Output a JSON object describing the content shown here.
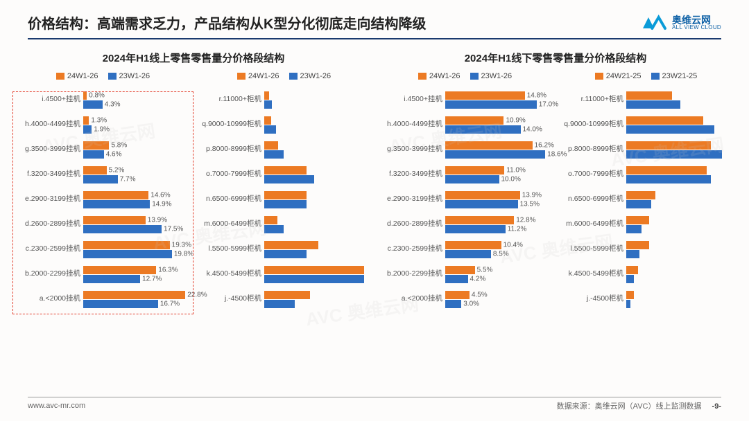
{
  "title": "价格结构：高端需求乏力，产品结构从K型分化彻底走向结构降级",
  "logo": {
    "cn": "奥维云网",
    "en": "ALL VIEW CLOUD"
  },
  "footer": {
    "url": "www.avc-mr.com",
    "source": "数据来源：奥维云网（AVC）线上监测数据",
    "page": "-9-"
  },
  "colors": {
    "series_a": "#ec7a23",
    "series_b": "#2f6fc1",
    "rule": "#1a3a6e",
    "highlight": "#e23c2a"
  },
  "panels": [
    {
      "title": "2024年H1线上零售零售量分价格段结构",
      "subcharts": [
        {
          "legend_a": "24W1-26",
          "legend_b": "23W1-26",
          "xmax": 24,
          "show_labels": true,
          "highlight": true,
          "rows": [
            {
              "cat": "i.4500+挂机",
              "a": 0.8,
              "b": 4.3
            },
            {
              "cat": "h.4000-4499挂机",
              "a": 1.3,
              "b": 1.9
            },
            {
              "cat": "g.3500-3999挂机",
              "a": 5.8,
              "b": 4.6
            },
            {
              "cat": "f.3200-3499挂机",
              "a": 5.2,
              "b": 7.7
            },
            {
              "cat": "e.2900-3199挂机",
              "a": 14.6,
              "b": 14.9
            },
            {
              "cat": "d.2600-2899挂机",
              "a": 13.9,
              "b": 17.5
            },
            {
              "cat": "c.2300-2599挂机",
              "a": 19.3,
              "b": 19.8
            },
            {
              "cat": "b.2000-2299挂机",
              "a": 16.3,
              "b": 12.7
            },
            {
              "cat": "a.<2000挂机",
              "a": 22.8,
              "b": 16.7
            }
          ]
        },
        {
          "legend_a": "24W1-26",
          "legend_b": "23W1-26",
          "xmax": 28,
          "show_labels": false,
          "rows": [
            {
              "cat": "r.11000+柜机",
              "a": 1.2,
              "b": 2.0
            },
            {
              "cat": "q.9000-10999柜机",
              "a": 1.8,
              "b": 3.0
            },
            {
              "cat": "p.8000-8999柜机",
              "a": 3.6,
              "b": 5.0
            },
            {
              "cat": "o.7000-7999柜机",
              "a": 11.0,
              "b": 13.0
            },
            {
              "cat": "n.6500-6999柜机",
              "a": 11.0,
              "b": 11.0
            },
            {
              "cat": "m.6000-6499柜机",
              "a": 3.5,
              "b": 5.0
            },
            {
              "cat": "l.5500-5999柜机",
              "a": 14.0,
              "b": 11.0
            },
            {
              "cat": "k.4500-5499柜机",
              "a": 26.0,
              "b": 26.0
            },
            {
              "cat": "j.-4500柜机",
              "a": 12.0,
              "b": 8.0
            }
          ]
        }
      ]
    },
    {
      "title": "2024年H1线下零售零售量分价格段结构",
      "subcharts": [
        {
          "legend_a": "24W1-26",
          "legend_b": "23W1-26",
          "xmax": 20,
          "show_labels": true,
          "rows": [
            {
              "cat": "i.4500+挂机",
              "a": 14.8,
              "b": 17.0
            },
            {
              "cat": "h.4000-4499挂机",
              "a": 10.9,
              "b": 14.0
            },
            {
              "cat": "g.3500-3999挂机",
              "a": 16.2,
              "b": 18.6
            },
            {
              "cat": "f.3200-3499挂机",
              "a": 11.0,
              "b": 10.0
            },
            {
              "cat": "e.2900-3199挂机",
              "a": 13.9,
              "b": 13.5
            },
            {
              "cat": "d.2600-2899挂机",
              "a": 12.8,
              "b": 11.2
            },
            {
              "cat": "c.2300-2599挂机",
              "a": 10.4,
              "b": 8.5
            },
            {
              "cat": "b.2000-2299挂机",
              "a": 5.5,
              "b": 4.2
            },
            {
              "cat": "a.<2000挂机",
              "a": 4.5,
              "b": 3.0
            }
          ]
        },
        {
          "legend_a": "24W21-25",
          "legend_b": "23W21-25",
          "xmax": 28,
          "show_labels": false,
          "rows": [
            {
              "cat": "r.11000+柜机",
              "a": 12.0,
              "b": 14.0
            },
            {
              "cat": "q.9000-10999柜机",
              "a": 20.0,
              "b": 23.0
            },
            {
              "cat": "p.8000-8999柜机",
              "a": 22.0,
              "b": 25.0
            },
            {
              "cat": "o.7000-7999柜机",
              "a": 21.0,
              "b": 22.0
            },
            {
              "cat": "n.6500-6999柜机",
              "a": 7.5,
              "b": 6.5
            },
            {
              "cat": "m.6000-6499柜机",
              "a": 6.0,
              "b": 4.0
            },
            {
              "cat": "l.5500-5999柜机",
              "a": 6.0,
              "b": 3.5
            },
            {
              "cat": "k.4500-5499柜机",
              "a": 3.0,
              "b": 2.0
            },
            {
              "cat": "j.-4500柜机",
              "a": 2.0,
              "b": 1.0
            }
          ]
        }
      ]
    }
  ]
}
